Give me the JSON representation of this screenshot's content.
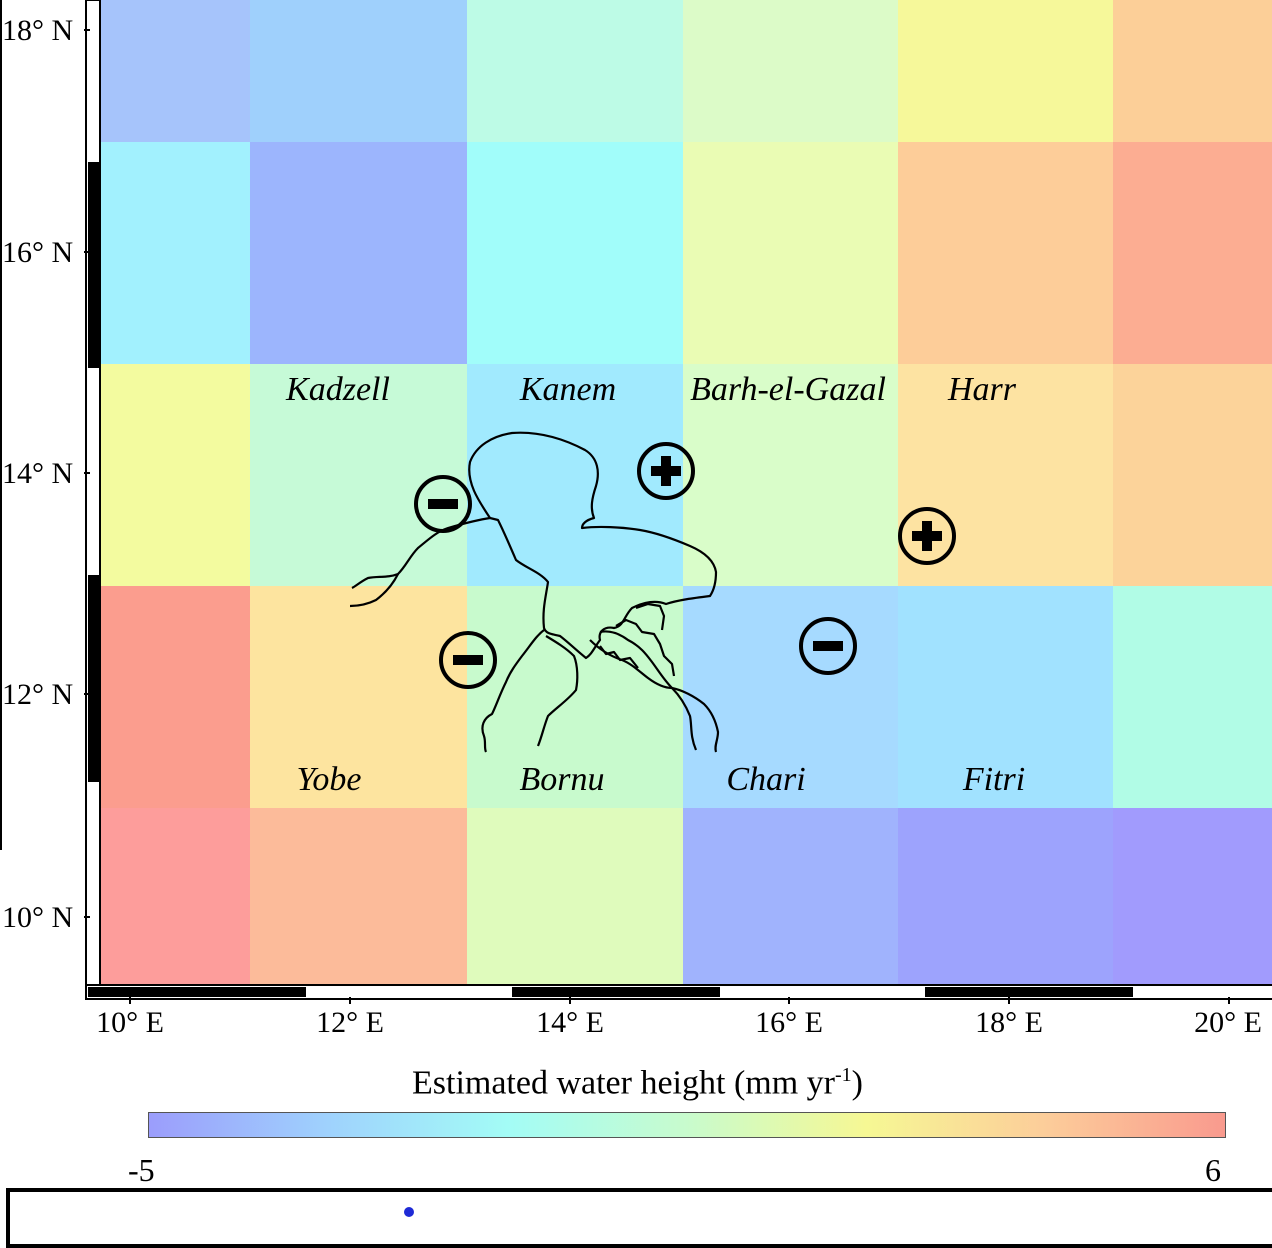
{
  "map": {
    "lat_labels": [
      "18° N",
      "16° N",
      "14° N",
      "12° N",
      "10° N"
    ],
    "lon_labels": [
      "10° E",
      "12° E",
      "14° E",
      "16° E",
      "18° E",
      "20° E"
    ],
    "regions": {
      "kadzell": "Kadzell",
      "kanem": "Kanem",
      "barh_el_gazal": "Barh-el-Gazal",
      "harr": "Harr",
      "yobe": "Yobe",
      "bornu": "Bornu",
      "chari": "Chari",
      "fitri": "Fitri"
    },
    "grid_colors": [
      [
        "#a6c4fb",
        "#9fd0fc",
        "#bdfbe6",
        "#dcfbc8",
        "#f6f89a",
        "#fccf98"
      ],
      [
        "#a2f1fe",
        "#9cb5fd",
        "#a1fdfa",
        "#eafcb4",
        "#fdcd99",
        "#fcad92"
      ],
      [
        "#f3fb9f",
        "#c6fad7",
        "#a1eafe",
        "#d9fdc9",
        "#fde3a2",
        "#fcd39a"
      ],
      [
        "#fb9d8e",
        "#fde49f",
        "#c8facd",
        "#a6daff",
        "#a1e2ff",
        "#b1fce6"
      ],
      [
        "#fd9d9b",
        "#fcbb9a",
        "#dffbbc",
        "#a0b3fd",
        "#9da3fd",
        "#a19bfd"
      ]
    ],
    "change_markers": [
      {
        "name": "kadzell-decrease",
        "sign": "-"
      },
      {
        "name": "yobe-decrease",
        "sign": "-"
      },
      {
        "name": "kanem-increase",
        "sign": "+"
      },
      {
        "name": "harr-increase",
        "sign": "+"
      },
      {
        "name": "chari-decrease",
        "sign": "-"
      }
    ]
  },
  "legend": {
    "title": "Estimated water height (mm yr",
    "title_sup": "-1",
    "title_close": ")",
    "min": "-5",
    "max": "6",
    "gradient_colors": [
      "#9b9dfc",
      "#9fd2fd",
      "#a3fcf6",
      "#c8fbcd",
      "#f6f894",
      "#fccd9a",
      "#f99a8e"
    ]
  }
}
